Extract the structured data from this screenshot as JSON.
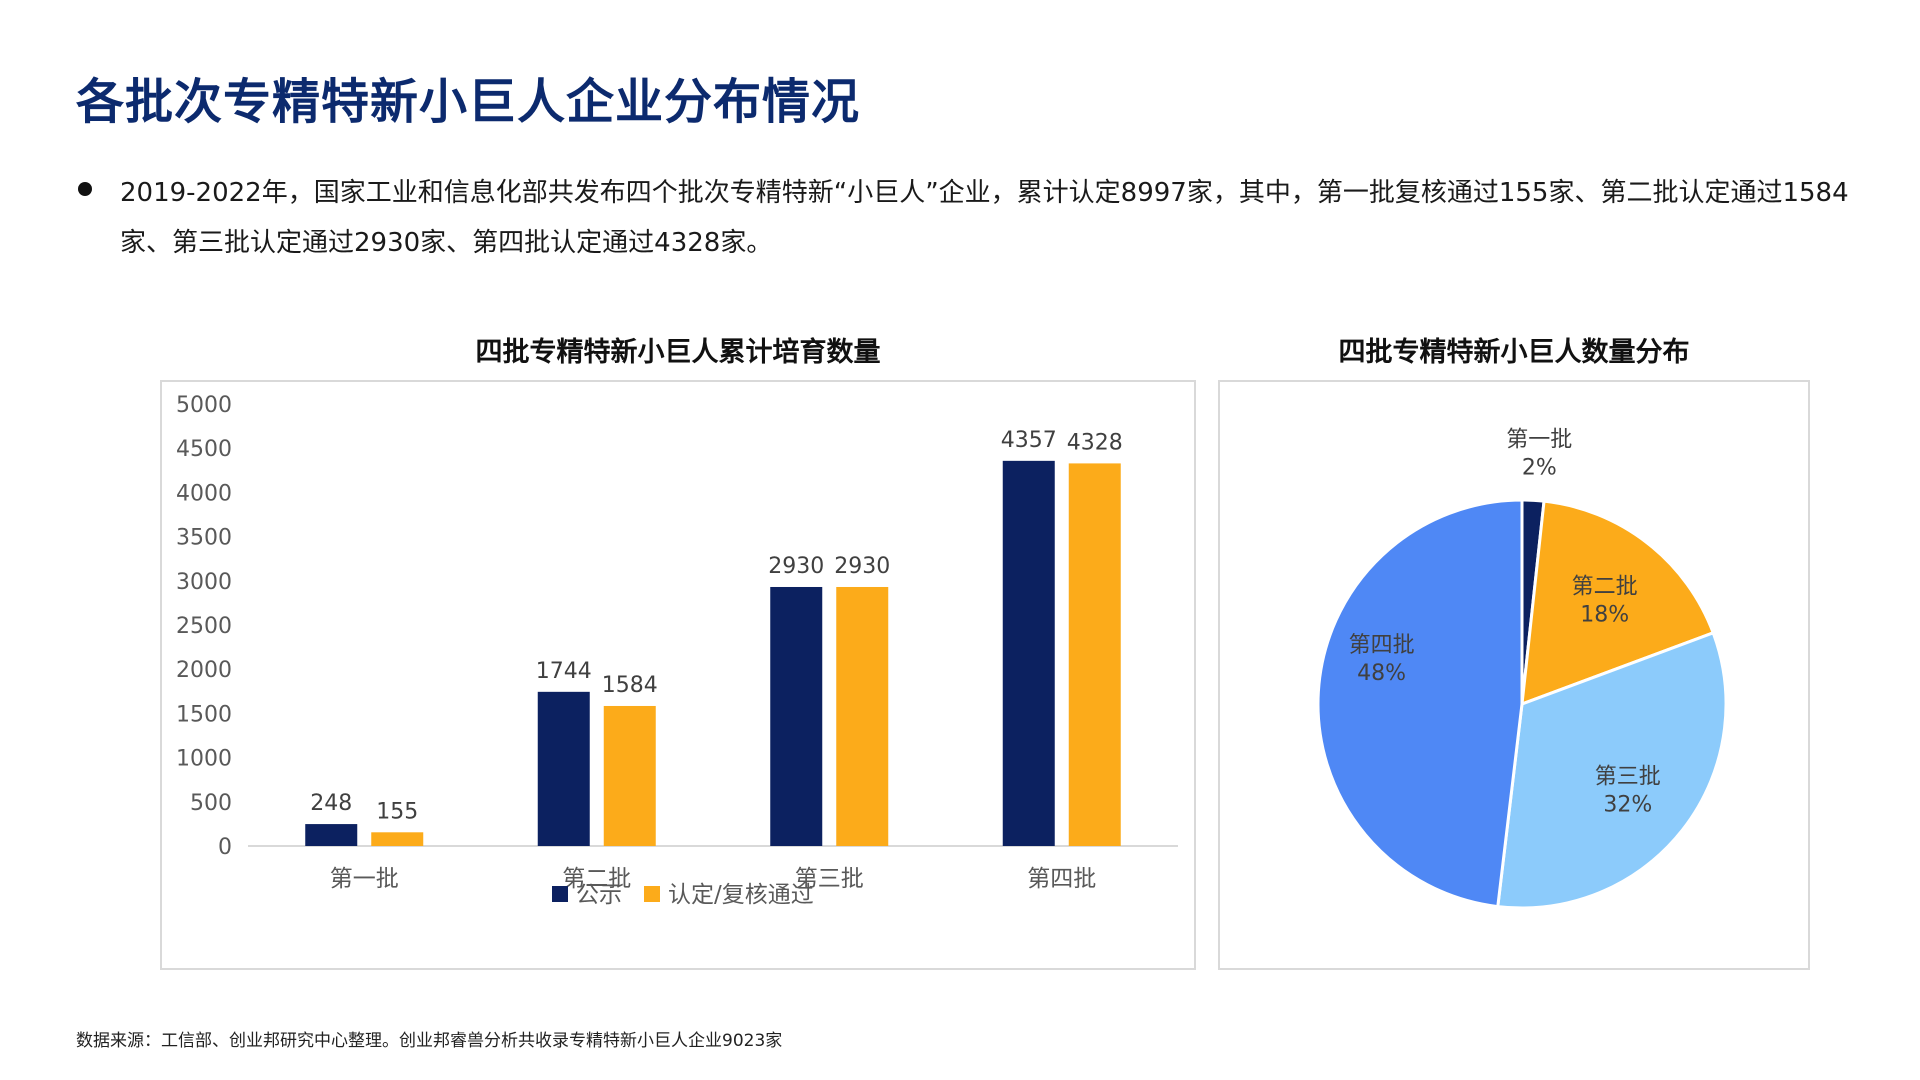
{
  "page": {
    "title": "各批次专精特新小巨人企业分布情况",
    "bullet": "2019-2022年，国家工业和信息化部共发布四个批次专精特新“小巨人”企业，累计认定8997家，其中，第一批复核通过155家、第二批认定通过1584家、第三批认定通过2930家、第四批认定通过4328家。",
    "source": "数据来源：工信部、创业邦研究中心整理。创业邦睿兽分析共收录专精特新小巨人企业9023家"
  },
  "colors": {
    "title": "#0c2a6e",
    "navy": "#0c2160",
    "orange": "#fcab1a",
    "light_blue": "#8ccbfb",
    "mid_blue": "#4f88f5"
  },
  "chart_data": [
    {
      "type": "bar",
      "title": "四批专精特新小巨人累计培育数量",
      "categories": [
        "第一批",
        "第二批",
        "第三批",
        "第四批"
      ],
      "series": [
        {
          "name": "公示",
          "values": [
            248,
            1744,
            2930,
            4357
          ],
          "color": "#0c2160"
        },
        {
          "name": "认定/复核通过",
          "values": [
            155,
            1584,
            2930,
            4328
          ],
          "color": "#fcab1a"
        }
      ],
      "ylim": [
        0,
        5000
      ],
      "yticks": [
        0,
        500,
        1000,
        1500,
        2000,
        2500,
        3000,
        3500,
        4000,
        4500,
        5000
      ],
      "grid": false,
      "legend": "bottom",
      "data_labels": true
    },
    {
      "type": "pie",
      "title": "四批专精特新小巨人数量分布",
      "labels": [
        "第一批",
        "第二批",
        "第三批",
        "第四批"
      ],
      "values": [
        155,
        1584,
        2930,
        4328
      ],
      "percent_labels": [
        "2%",
        "18%",
        "32%",
        "48%"
      ],
      "colors": [
        "#0c2160",
        "#fcab1a",
        "#8ccbfb",
        "#4f88f5"
      ],
      "start": "top",
      "direction": "clockwise"
    }
  ]
}
